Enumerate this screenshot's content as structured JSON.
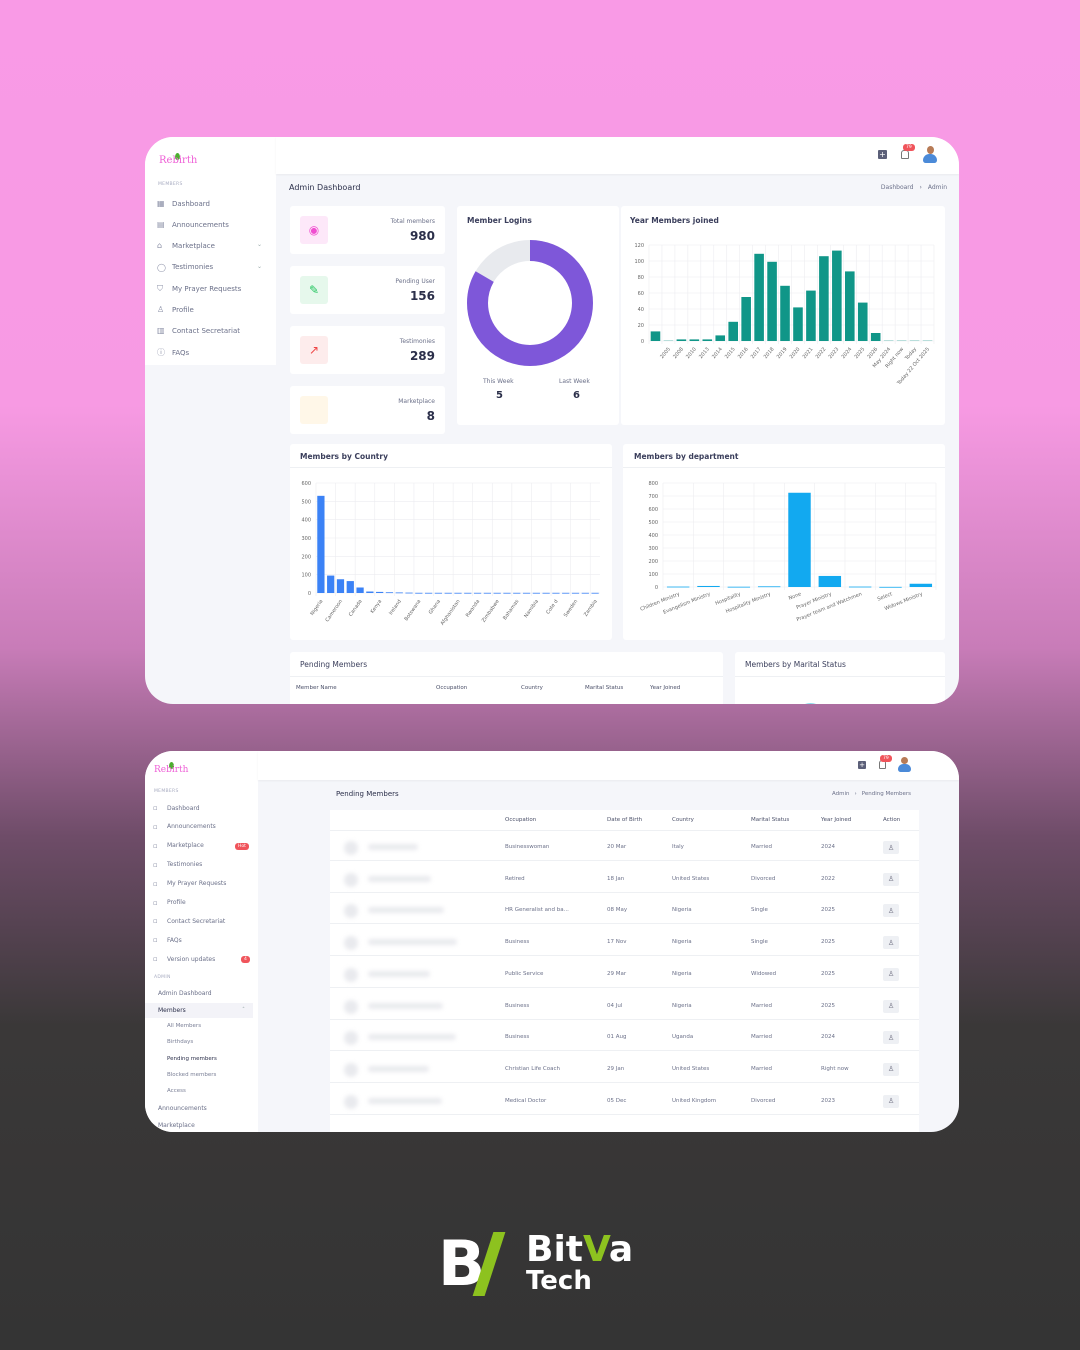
{
  "brand": {
    "logo_text": "Rebirth"
  },
  "top": {
    "sidebar": {
      "section": "MEMBERS",
      "items": [
        {
          "label": "Dashboard",
          "icon": "grid-icon"
        },
        {
          "label": "Announcements",
          "icon": "newspaper-icon"
        },
        {
          "label": "Marketplace",
          "icon": "store-icon",
          "chevron": true
        },
        {
          "label": "Testimonies",
          "icon": "chat-icon",
          "chevron": true
        },
        {
          "label": "My Prayer Requests",
          "icon": "shield-icon"
        },
        {
          "label": "Profile",
          "icon": "user-icon"
        },
        {
          "label": "Contact Secretariat",
          "icon": "id-card-icon"
        },
        {
          "label": "FAQs",
          "icon": "help-icon"
        }
      ]
    },
    "header": {
      "notification_count": "79"
    },
    "page_title": "Admin Dashboard",
    "breadcrumb": [
      "Dashboard",
      "Admin"
    ],
    "stats": [
      {
        "label": "Total members",
        "value": "980",
        "icon": "eye-icon",
        "color": "#f04fd0",
        "bg": "#fde8f9"
      },
      {
        "label": "Pending User",
        "value": "156",
        "icon": "edit-icon",
        "color": "#22c55e",
        "bg": "#e6f8ec"
      },
      {
        "label": "Testimonies",
        "value": "289",
        "icon": "trending-up-icon",
        "color": "#ef4444",
        "bg": "#fdecec"
      },
      {
        "label": "Marketplace",
        "value": "8",
        "icon": "store-icon",
        "color": "#f59e0b",
        "bg": "#fff7e8"
      }
    ],
    "logins": {
      "title": "Member Logins",
      "this_week_label": "This Week",
      "this_week": "5",
      "last_week_label": "Last Week",
      "last_week": "6",
      "colors": [
        "#7e57d9",
        "#e8eaee"
      ]
    },
    "pending": {
      "title": "Pending Members",
      "columns": [
        "Member Name",
        "Occupation",
        "Country",
        "Marital Status",
        "Year Joined"
      ]
    },
    "marital": {
      "title": "Members by Marital Status",
      "colors": [
        "#f59e0b",
        "#1ab6d8"
      ]
    }
  },
  "chart_data": [
    {
      "type": "bar",
      "title": "Year Members joined",
      "color": "#109688",
      "ylim": [
        0,
        120
      ],
      "yticks": [
        0,
        20,
        40,
        60,
        80,
        100,
        120
      ],
      "grid": true,
      "categories": [
        "",
        "2005",
        "2008",
        "2010",
        "2013",
        "2014",
        "2015",
        "2016",
        "2017",
        "2018",
        "2019",
        "2020",
        "2021",
        "2022",
        "2023",
        "2024",
        "2025",
        "2026",
        "May 2024",
        "Right now",
        "Today",
        "Today 22 Oct 2025"
      ],
      "values": [
        12,
        1,
        2,
        2,
        2,
        7,
        24,
        55,
        109,
        99,
        69,
        42,
        63,
        106,
        113,
        87,
        48,
        10,
        1,
        1,
        1,
        1
      ]
    },
    {
      "type": "bar",
      "title": "Members by Country",
      "color": "#3b82f6",
      "ylim": [
        0,
        600
      ],
      "yticks": [
        0,
        100,
        200,
        300,
        400,
        500,
        600
      ],
      "grid": true,
      "categories": [
        "Nigeria",
        "",
        "Cameroon",
        "",
        "Canada",
        "",
        "Kenya",
        "",
        "Ireland",
        "",
        "Botswana",
        "",
        "Ghana",
        "",
        "Afghanistan",
        "",
        "Rwanda",
        "",
        "Zimbabwe",
        "",
        "Bahamas",
        "",
        "Namibia",
        "",
        "Cote d",
        "",
        "Sweden",
        "",
        "Zambia"
      ],
      "values": [
        530,
        95,
        75,
        65,
        30,
        8,
        6,
        4,
        3,
        2,
        1,
        1,
        1,
        1,
        1,
        1,
        1,
        1,
        1,
        1,
        1,
        1,
        1,
        1,
        1,
        1,
        1,
        1,
        1
      ]
    },
    {
      "type": "bar",
      "title": "Members by department",
      "color": "#12a9f0",
      "ylim": [
        0,
        800
      ],
      "yticks": [
        0,
        100,
        200,
        300,
        400,
        500,
        600,
        700,
        800
      ],
      "grid": true,
      "categories": [
        "Children Ministry",
        "Evangelism Ministry",
        "Hospitality",
        "Hospitality Ministry",
        "None",
        "Prayer Ministry",
        "Prayer team and Watchmen",
        "Select",
        "Widows Ministry"
      ],
      "values": [
        3,
        8,
        2,
        5,
        725,
        85,
        3,
        1,
        25
      ]
    }
  ],
  "bottom": {
    "sidebar": {
      "section": "MEMBERS",
      "items": [
        {
          "label": "Dashboard"
        },
        {
          "label": "Announcements"
        },
        {
          "label": "Marketplace",
          "badge": "Hot"
        },
        {
          "label": "Testimonies"
        },
        {
          "label": "My Prayer Requests"
        },
        {
          "label": "Profile"
        },
        {
          "label": "Contact Secretariat"
        },
        {
          "label": "FAQs"
        },
        {
          "label": "Version updates",
          "badge": "4"
        }
      ],
      "admin_section": "ADMIN",
      "admin_items": [
        "Admin Dashboard",
        "Members"
      ],
      "members_sub": [
        "All Members",
        "Birthdays",
        "Pending members",
        "Blocked members",
        "Access"
      ],
      "more": [
        "Announcements",
        "Marketplace"
      ]
    },
    "page_title": "Pending Members",
    "breadcrumb": [
      "Admin",
      "Pending Members"
    ],
    "columns": [
      "Occupation",
      "Date of Birth",
      "Country",
      "Marital Status",
      "Year Joined",
      "Action"
    ],
    "rows": [
      [
        "Businesswoman",
        "20 Mar",
        "Italy",
        "Married",
        "2024"
      ],
      [
        "Retired",
        "18 Jan",
        "United States",
        "Divorced",
        "2022"
      ],
      [
        "HR Generalist and ba...",
        "08 May",
        "Nigeria",
        "Single",
        "2025"
      ],
      [
        "Business",
        "17 Nov",
        "Nigeria",
        "Single",
        "2025"
      ],
      [
        "Public Service",
        "29 Mar",
        "Nigeria",
        "Widowed",
        "2025"
      ],
      [
        "Business",
        "04 Jul",
        "Nigeria",
        "Married",
        "2025"
      ],
      [
        "Business",
        "01 Aug",
        "Uganda",
        "Married",
        "2024"
      ],
      [
        "Christian Life Coach",
        "29 Jan",
        "United States",
        "Married",
        "Right now"
      ],
      [
        "Medical Doctor",
        "05 Dec",
        "United Kingdom",
        "Divorced",
        "2023"
      ]
    ]
  },
  "footer_logo": {
    "mark": "B/",
    "line1": "BitVa",
    "line2": "Tech",
    "accent": "#8dc21f"
  }
}
